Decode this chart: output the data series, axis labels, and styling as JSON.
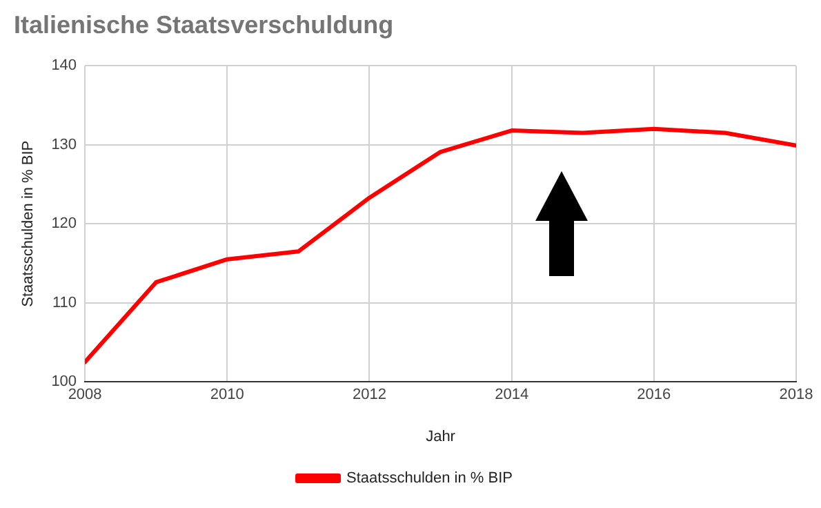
{
  "chart_data": {
    "type": "line",
    "title": "Italienische Staatsverschuldung",
    "xlabel": "Jahr",
    "ylabel": "Staatsschulden in % BIP",
    "x": [
      2008,
      2009,
      2010,
      2011,
      2012,
      2013,
      2014,
      2015,
      2016,
      2017,
      2018
    ],
    "series": [
      {
        "name": "Staatsschulden in % BIP",
        "color": "#ff0000",
        "values": [
          102.5,
          112.6,
          115.5,
          116.5,
          123.3,
          129.1,
          131.8,
          131.5,
          132,
          131.5,
          129.9
        ]
      }
    ],
    "xlim": [
      2008,
      2018
    ],
    "xticks": [
      2008,
      2010,
      2012,
      2014,
      2016,
      2018
    ],
    "ylim": [
      100,
      140
    ],
    "yticks": [
      100,
      110,
      120,
      130,
      140
    ],
    "grid": true,
    "legend": "bottom",
    "marker": "none",
    "line_style": "solid"
  }
}
